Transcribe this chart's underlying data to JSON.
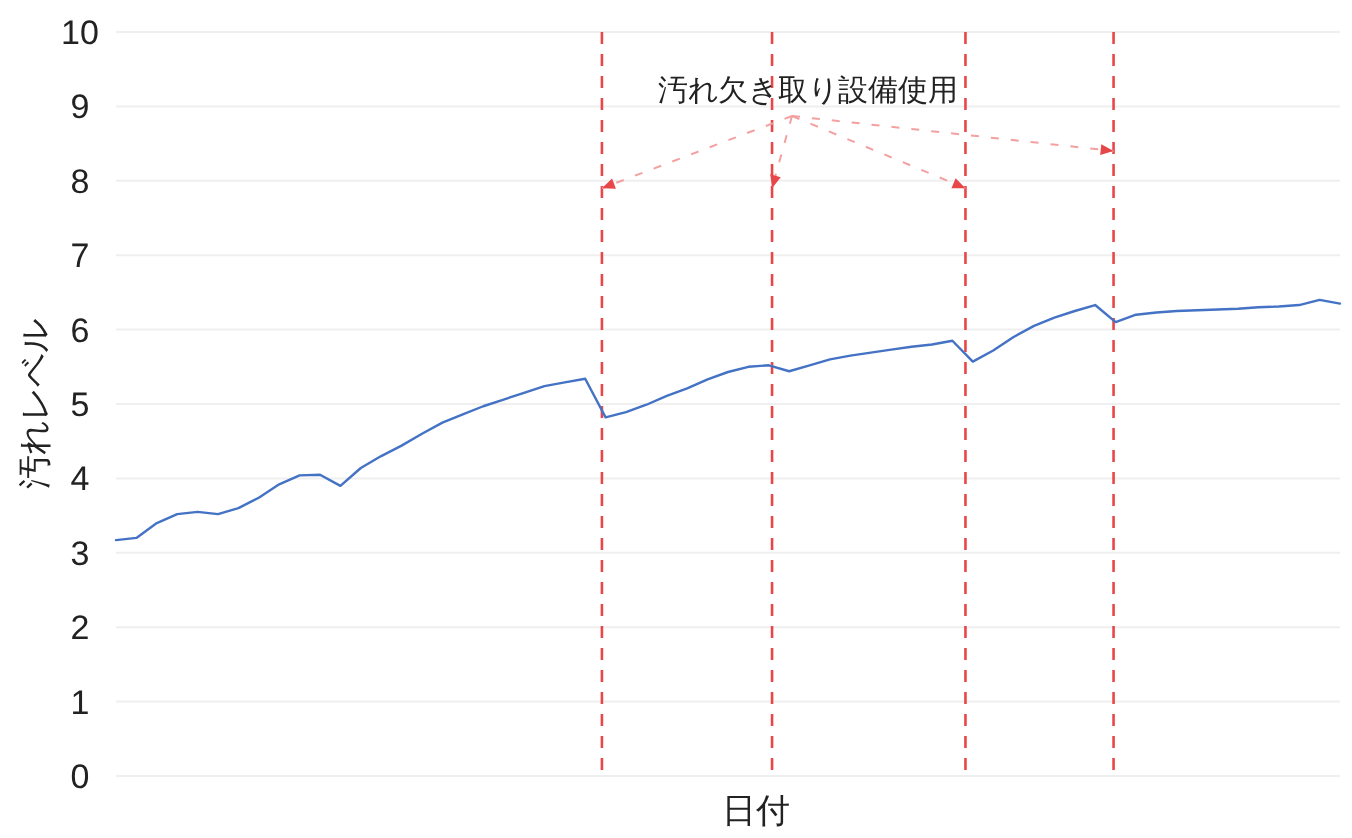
{
  "chart_data": {
    "type": "line",
    "xlabel": "日付",
    "ylabel": "汚れレベル",
    "annotations": [
      "汚れ欠き取り設備使用"
    ],
    "categories": [
      null,
      null,
      null,
      null,
      null,
      null,
      null,
      null,
      null,
      null,
      null,
      null,
      null,
      null,
      null,
      null,
      null,
      null,
      null,
      null,
      null,
      null,
      null,
      null,
      null,
      null,
      null,
      null,
      null,
      null,
      null,
      null,
      null,
      null,
      null,
      null,
      null,
      null,
      null,
      null,
      null,
      null,
      null,
      null,
      null,
      null,
      null,
      null,
      null,
      null,
      null,
      null,
      null,
      null,
      null,
      null,
      null,
      null,
      null,
      null,
      null
    ],
    "series": [
      {
        "color": "#4472c4",
        "values": [
          3.17,
          3.2,
          3.4,
          3.52,
          3.55,
          3.52,
          3.6,
          3.74,
          3.92,
          4.04,
          4.05,
          3.9,
          4.14,
          4.3,
          4.44,
          4.6,
          4.75,
          4.86,
          4.97,
          5.06,
          5.15,
          5.24,
          5.29,
          5.34,
          4.82,
          4.89,
          4.99,
          5.11,
          5.21,
          5.33,
          5.43,
          5.5,
          5.52,
          5.44,
          5.52,
          5.6,
          5.65,
          5.69,
          5.73,
          5.77,
          5.8,
          5.85,
          5.57,
          5.72,
          5.9,
          6.05,
          6.16,
          6.25,
          6.33,
          6.1,
          6.2,
          6.23,
          6.25,
          6.26,
          6.27,
          6.28,
          6.3,
          6.31,
          6.33,
          6.4,
          6.35
        ]
      }
    ],
    "ylim": [
      0,
      10
    ],
    "yticks": [
      0,
      1,
      2,
      3,
      4,
      5,
      6,
      7,
      8,
      9,
      10
    ],
    "grid": true,
    "marker": "none",
    "line_style": "solid"
  }
}
